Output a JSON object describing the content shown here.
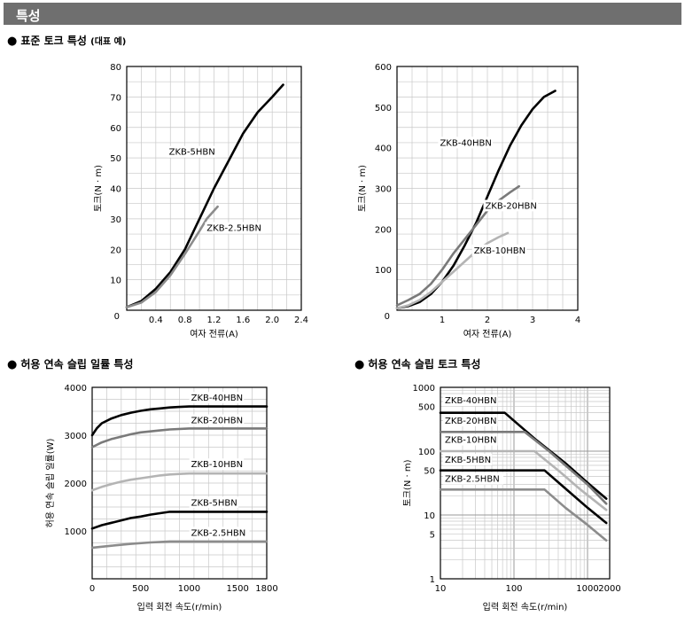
{
  "header": {
    "title": "특성"
  },
  "sections": {
    "torque": {
      "bullet": "●",
      "title": "표준 토크 특성",
      "subtitle": "(대표 예)"
    },
    "slip_power": {
      "bullet": "●",
      "title": "허용 연속 슬립 일률 특성"
    },
    "slip_torque": {
      "bullet": "●",
      "title": "허용 연속 슬립 토크 특성"
    }
  },
  "chart_data": [
    {
      "id": "c1",
      "type": "line",
      "title": "",
      "xlabel": "여자 전류(A)",
      "ylabel": "토크(N · m)",
      "xlim": [
        0,
        2.4
      ],
      "ylim": [
        0,
        80
      ],
      "xticks": [
        0.4,
        0.8,
        1.2,
        1.6,
        2.0,
        2.4
      ],
      "xtick_labels": [
        "0.4",
        "0.8",
        "1.2",
        "1.6",
        "2.0",
        "2.4"
      ],
      "yticks": [
        10,
        20,
        30,
        40,
        50,
        60,
        70,
        80
      ],
      "ytick_labels": [
        "10",
        "20",
        "30",
        "40",
        "50",
        "60",
        "70",
        "80"
      ],
      "origin_label": "0",
      "grid": true,
      "series": [
        {
          "name": "ZKB-5HBN",
          "color": "#000000",
          "x": [
            0,
            0.2,
            0.4,
            0.6,
            0.8,
            1.0,
            1.2,
            1.4,
            1.6,
            1.8,
            2.0,
            2.15
          ],
          "y": [
            1,
            3,
            7,
            12.5,
            20,
            30,
            40,
            49,
            58,
            65,
            70,
            74
          ]
        },
        {
          "name": "ZKB-2.5HBN",
          "color": "#8c8c8c",
          "x": [
            0,
            0.2,
            0.4,
            0.6,
            0.8,
            1.0,
            1.1,
            1.25
          ],
          "y": [
            1,
            2.5,
            6,
            11.5,
            18.5,
            26,
            30,
            34
          ]
        }
      ],
      "annotations": [
        {
          "text": "ZKB-5HBN",
          "x": 0.58,
          "y": 51
        },
        {
          "text": "ZKB-2.5HBN",
          "x": 1.1,
          "y": 26
        }
      ]
    },
    {
      "id": "c2",
      "type": "line",
      "title": "",
      "xlabel": "여자 전류(A)",
      "ylabel": "토크(N · m)",
      "xlim": [
        0,
        4
      ],
      "ylim": [
        0,
        600
      ],
      "xticks": [
        1,
        2,
        3,
        4
      ],
      "xtick_labels": [
        "1",
        "2",
        "3",
        "4"
      ],
      "yticks": [
        100,
        200,
        300,
        400,
        500,
        600
      ],
      "ytick_labels": [
        "100",
        "200",
        "300",
        "400",
        "500",
        "600"
      ],
      "origin_label": "0",
      "grid": true,
      "series": [
        {
          "name": "ZKB-40HBN",
          "color": "#000000",
          "x": [
            0,
            0.25,
            0.5,
            0.75,
            1.0,
            1.25,
            1.5,
            1.75,
            2.0,
            2.25,
            2.5,
            2.75,
            3.0,
            3.25,
            3.5
          ],
          "y": [
            5,
            10,
            20,
            40,
            70,
            110,
            160,
            215,
            280,
            345,
            405,
            455,
            495,
            525,
            540
          ]
        },
        {
          "name": "ZKB-20HBN",
          "color": "#7a7a7a",
          "x": [
            0,
            0.25,
            0.5,
            0.75,
            1.0,
            1.25,
            1.5,
            1.75,
            2.0,
            2.25,
            2.5,
            2.7
          ],
          "y": [
            12,
            25,
            40,
            65,
            100,
            140,
            175,
            210,
            245,
            270,
            290,
            305
          ]
        },
        {
          "name": "ZKB-10HBN",
          "color": "#b4b4b4",
          "x": [
            0,
            0.25,
            0.5,
            0.75,
            1.0,
            1.25,
            1.5,
            1.75,
            2.0,
            2.25,
            2.45
          ],
          "y": [
            5,
            12,
            25,
            45,
            70,
            95,
            120,
            145,
            165,
            180,
            190
          ]
        }
      ],
      "annotations": [
        {
          "text": "ZKB-40HBN",
          "x": 0.95,
          "y": 405
        },
        {
          "text": "ZKB-20HBN",
          "x": 1.95,
          "y": 250
        },
        {
          "text": "ZKB-10HBN",
          "x": 1.7,
          "y": 140
        }
      ]
    },
    {
      "id": "c3",
      "type": "line",
      "title": "",
      "xlabel": "입력 회전 속도(r/min)",
      "ylabel": "허용 연속 슬립 일률(W)",
      "xlim": [
        0,
        1800
      ],
      "ylim": [
        0,
        4000
      ],
      "xticks": [
        0,
        500,
        1000,
        1500,
        1800
      ],
      "xtick_labels": [
        "0",
        "500",
        "1000",
        "1500",
        "1800"
      ],
      "yticks": [
        1000,
        2000,
        3000,
        4000
      ],
      "ytick_labels": [
        "1000",
        "2000",
        "3000",
        "4000"
      ],
      "grid": true,
      "series": [
        {
          "name": "ZKB-40HBN",
          "color": "#000000",
          "x": [
            0,
            50,
            100,
            200,
            300,
            400,
            500,
            600,
            700,
            800,
            900,
            1000,
            1800
          ],
          "y": [
            3000,
            3150,
            3250,
            3350,
            3420,
            3470,
            3510,
            3540,
            3560,
            3580,
            3590,
            3600,
            3600
          ]
        },
        {
          "name": "ZKB-20HBN",
          "color": "#7a7a7a",
          "x": [
            0,
            100,
            200,
            300,
            400,
            500,
            600,
            700,
            800,
            1000,
            1800
          ],
          "y": [
            2750,
            2850,
            2920,
            2970,
            3020,
            3060,
            3080,
            3100,
            3120,
            3140,
            3140
          ]
        },
        {
          "name": "ZKB-10HBN",
          "color": "#b4b4b4",
          "x": [
            0,
            100,
            200,
            300,
            400,
            500,
            600,
            700,
            800,
            900,
            1000,
            1800
          ],
          "y": [
            1850,
            1920,
            1980,
            2030,
            2070,
            2100,
            2130,
            2160,
            2180,
            2190,
            2200,
            2200
          ]
        },
        {
          "name": "ZKB-5HBN",
          "color": "#000000",
          "x": [
            0,
            100,
            200,
            300,
            400,
            500,
            600,
            700,
            800,
            1800
          ],
          "y": [
            1050,
            1120,
            1170,
            1220,
            1270,
            1300,
            1340,
            1370,
            1400,
            1400
          ]
        },
        {
          "name": "ZKB-2.5HBN",
          "color": "#8c8c8c",
          "x": [
            0,
            200,
            400,
            600,
            800,
            1800
          ],
          "y": [
            650,
            690,
            730,
            760,
            780,
            780
          ]
        }
      ],
      "annotations": [
        {
          "text": "ZKB-40HBN",
          "x": 1020,
          "y": 3720
        },
        {
          "text": "ZKB-20HBN",
          "x": 1020,
          "y": 3250
        },
        {
          "text": "ZKB-10HBN",
          "x": 1020,
          "y": 2330
        },
        {
          "text": "ZKB-5HBN",
          "x": 1020,
          "y": 1530
        },
        {
          "text": "ZKB-2.5HBN",
          "x": 1020,
          "y": 900
        }
      ]
    },
    {
      "id": "c4",
      "type": "line",
      "title": "",
      "xlabel": "입력 회전 속도(r/min)",
      "ylabel": "토크(N · m)",
      "xscale": "log",
      "yscale": "log",
      "xlim": [
        10,
        2000
      ],
      "ylim": [
        1,
        1000
      ],
      "xticks": [
        10,
        100,
        1000,
        2000
      ],
      "xtick_labels": [
        "10",
        "100",
        "1000",
        "2000"
      ],
      "yticks": [
        1,
        5,
        10,
        50,
        100,
        500,
        1000
      ],
      "ytick_labels": [
        "1",
        "5",
        "10",
        "50",
        "100",
        "500",
        "1000"
      ],
      "grid": true,
      "series": [
        {
          "name": "ZKB-40HBN",
          "color": "#000000",
          "x": [
            10,
            75,
            200,
            500,
            1000,
            1800
          ],
          "y": [
            400,
            400,
            150,
            65,
            32,
            18
          ]
        },
        {
          "name": "ZKB-20HBN",
          "color": "#7a7a7a",
          "x": [
            10,
            140,
            300,
            600,
            1000,
            1800
          ],
          "y": [
            200,
            200,
            100,
            50,
            30,
            15
          ]
        },
        {
          "name": "ZKB-10HBN",
          "color": "#b4b4b4",
          "x": [
            10,
            190,
            400,
            800,
            1800
          ],
          "y": [
            100,
            100,
            50,
            25,
            12
          ]
        },
        {
          "name": "ZKB-5HBN",
          "color": "#000000",
          "x": [
            10,
            260,
            500,
            1000,
            1800
          ],
          "y": [
            50,
            50,
            26,
            13,
            7.5
          ]
        },
        {
          "name": "ZKB-2.5HBN",
          "color": "#8c8c8c",
          "x": [
            10,
            260,
            500,
            1000,
            1800
          ],
          "y": [
            25,
            25,
            13,
            7,
            4
          ]
        }
      ],
      "annotations": [
        {
          "text": "ZKB-40HBN",
          "x": 11.5,
          "y": 560
        },
        {
          "text": "ZKB-20HBN",
          "x": 11.5,
          "y": 270
        },
        {
          "text": "ZKB-10HBN",
          "x": 11.5,
          "y": 135
        },
        {
          "text": "ZKB-5HBN",
          "x": 11.5,
          "y": 66
        },
        {
          "text": "ZKB-2.5HBN",
          "x": 11.5,
          "y": 33
        }
      ]
    }
  ]
}
